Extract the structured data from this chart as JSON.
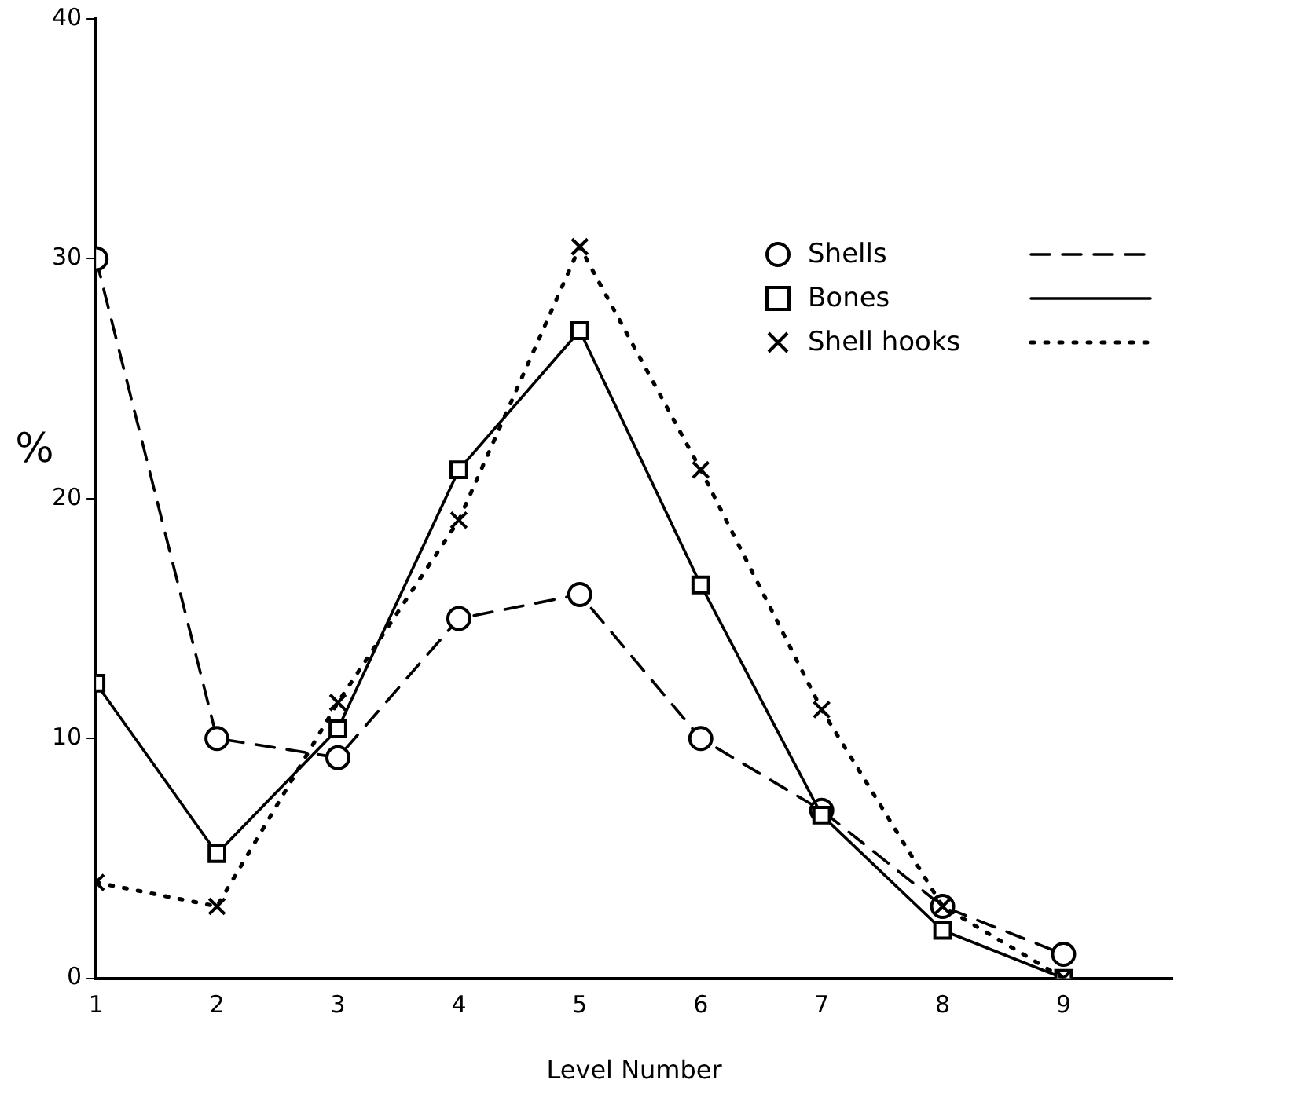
{
  "chart_data": {
    "type": "line",
    "xlabel": "Level Number",
    "ylabel": "%",
    "x": [
      1,
      2,
      3,
      4,
      5,
      6,
      7,
      8,
      9
    ],
    "xlim": [
      1,
      9.9
    ],
    "xticks": [
      1,
      2,
      3,
      4,
      5,
      6,
      7,
      8,
      9
    ],
    "ylim": [
      0,
      40
    ],
    "yticks": [
      0,
      10,
      20,
      30,
      40
    ],
    "grid": false,
    "legend": "top right",
    "series": [
      {
        "name": "Shells",
        "color": "#000000",
        "marker": "circle",
        "line_style": "dashed",
        "values": [
          30,
          10,
          9.2,
          15,
          16,
          10,
          7,
          3,
          1
        ]
      },
      {
        "name": "Bones",
        "color": "#000000",
        "marker": "square",
        "line_style": "solid",
        "values": [
          12.3,
          5.2,
          10.4,
          21.2,
          27,
          16.4,
          6.8,
          2,
          0
        ]
      },
      {
        "name": "Shell hooks",
        "color": "#000000",
        "marker": "cross",
        "line_style": "dotted",
        "values": [
          4,
          3,
          11.5,
          19.1,
          30.5,
          21.2,
          11.2,
          3,
          0
        ]
      }
    ]
  }
}
